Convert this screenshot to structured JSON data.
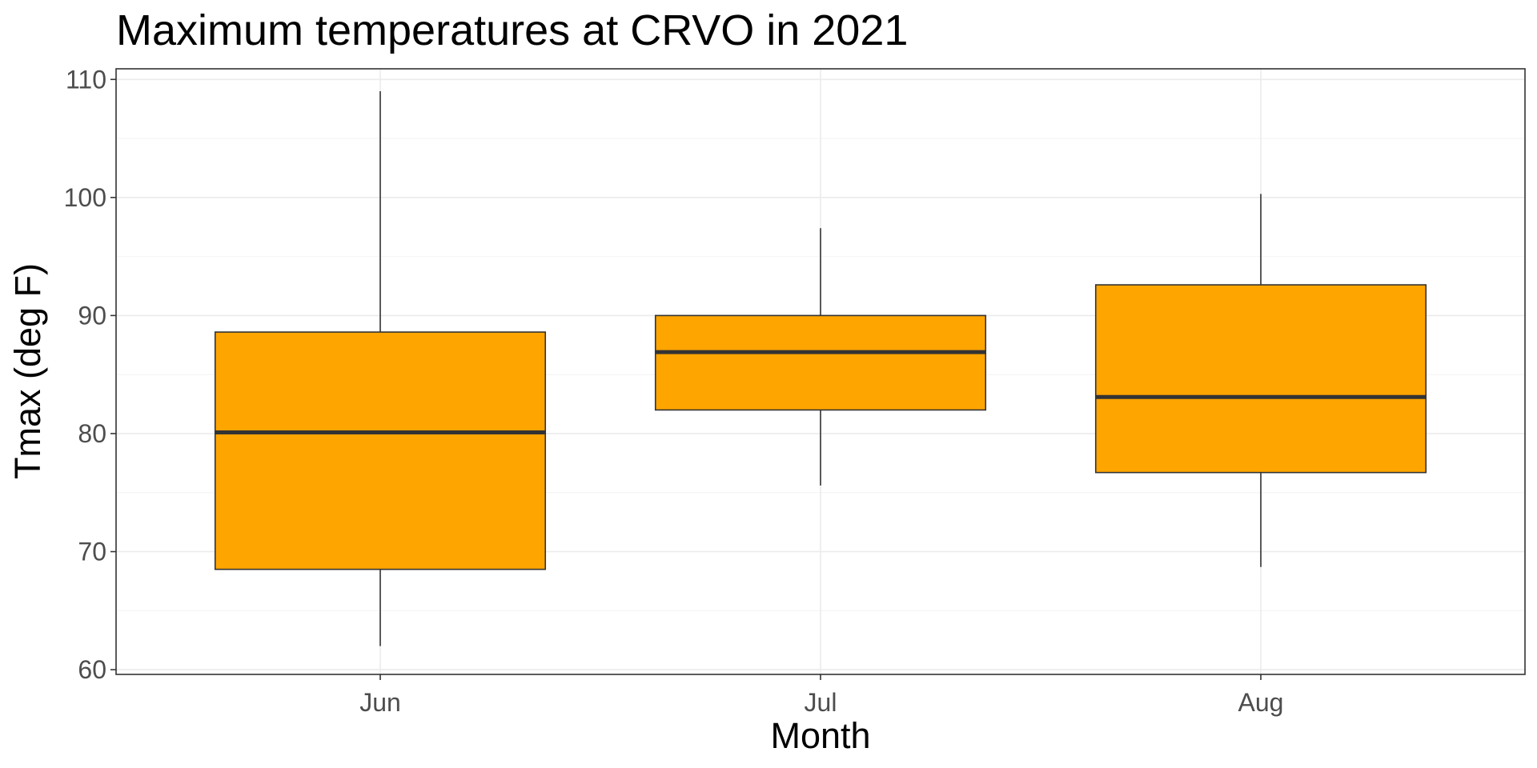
{
  "chart_data": {
    "type": "boxplot",
    "title": "Maximum temperatures at CRVO in 2021",
    "xlabel": "Month",
    "ylabel": "Tmax (deg F)",
    "categories": [
      "Jun",
      "Jul",
      "Aug"
    ],
    "boxes": [
      {
        "category": "Jun",
        "min": 62,
        "q1": 68.5,
        "median": 80.1,
        "q3": 88.6,
        "max": 109
      },
      {
        "category": "Jul",
        "min": 75.6,
        "q1": 82,
        "median": 86.9,
        "q3": 90,
        "max": 97.4
      },
      {
        "category": "Aug",
        "min": 68.7,
        "q1": 76.7,
        "median": 83.1,
        "q3": 92.6,
        "max": 100.3
      }
    ],
    "ylim": [
      59.6,
      110.9
    ],
    "yticks": [
      60,
      70,
      80,
      90,
      100,
      110
    ],
    "grid": true,
    "legend": "none",
    "fill_color": "#FFA500",
    "outline_color": "#333333"
  }
}
